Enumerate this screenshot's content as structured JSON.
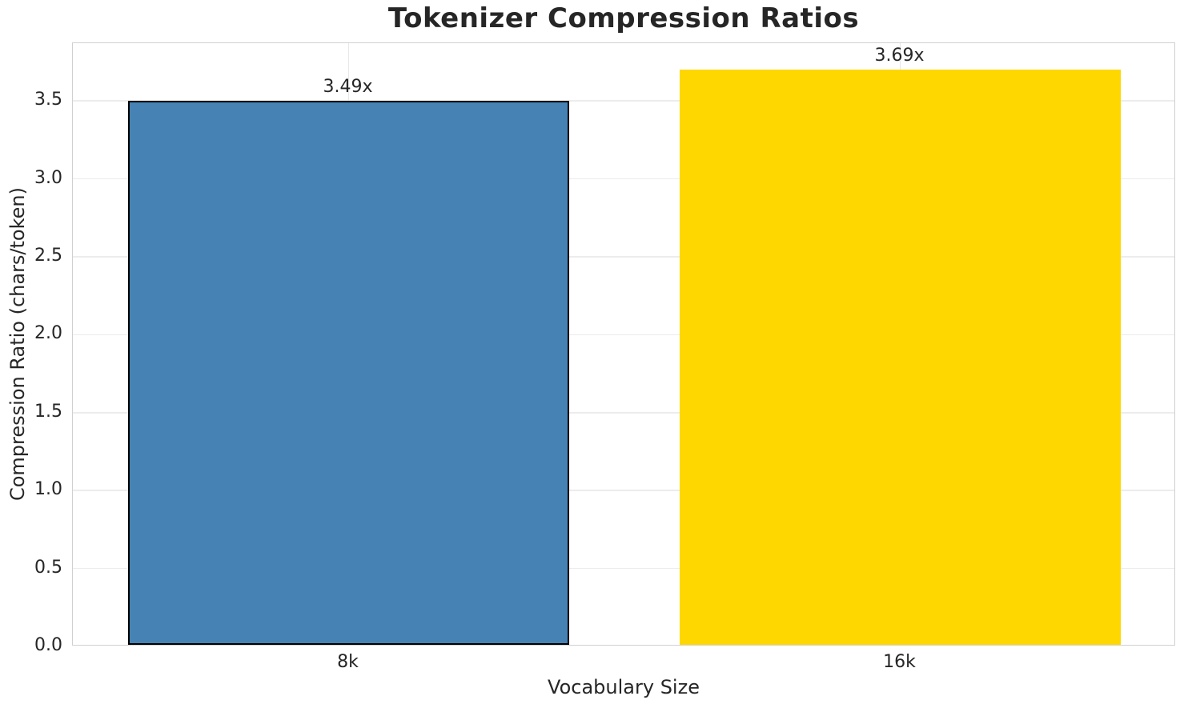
{
  "chart_data": {
    "type": "bar",
    "title": "Tokenizer Compression Ratios",
    "xlabel": "Vocabulary Size",
    "ylabel": "Compression Ratio (chars/token)",
    "categories": [
      "8k",
      "16k"
    ],
    "values": [
      3.49,
      3.69
    ],
    "bar_labels": [
      "3.49x",
      "3.69x"
    ],
    "bar_colors": [
      "#4682B4",
      "#FFD700"
    ],
    "bar_edge_colors": [
      "#000000",
      "none"
    ],
    "ylim": [
      0,
      3.87
    ],
    "yticks": [
      0.0,
      0.5,
      1.0,
      1.5,
      2.0,
      2.5,
      3.0,
      3.5
    ],
    "ytick_labels": [
      "0.0",
      "0.5",
      "1.0",
      "1.5",
      "2.0",
      "2.5",
      "3.0",
      "3.5"
    ],
    "grid": true,
    "legend_position": "none",
    "colors": {
      "background": "#ffffff",
      "grid": "#ececec",
      "spine": "#d0d0d0",
      "text": "#262626"
    }
  }
}
